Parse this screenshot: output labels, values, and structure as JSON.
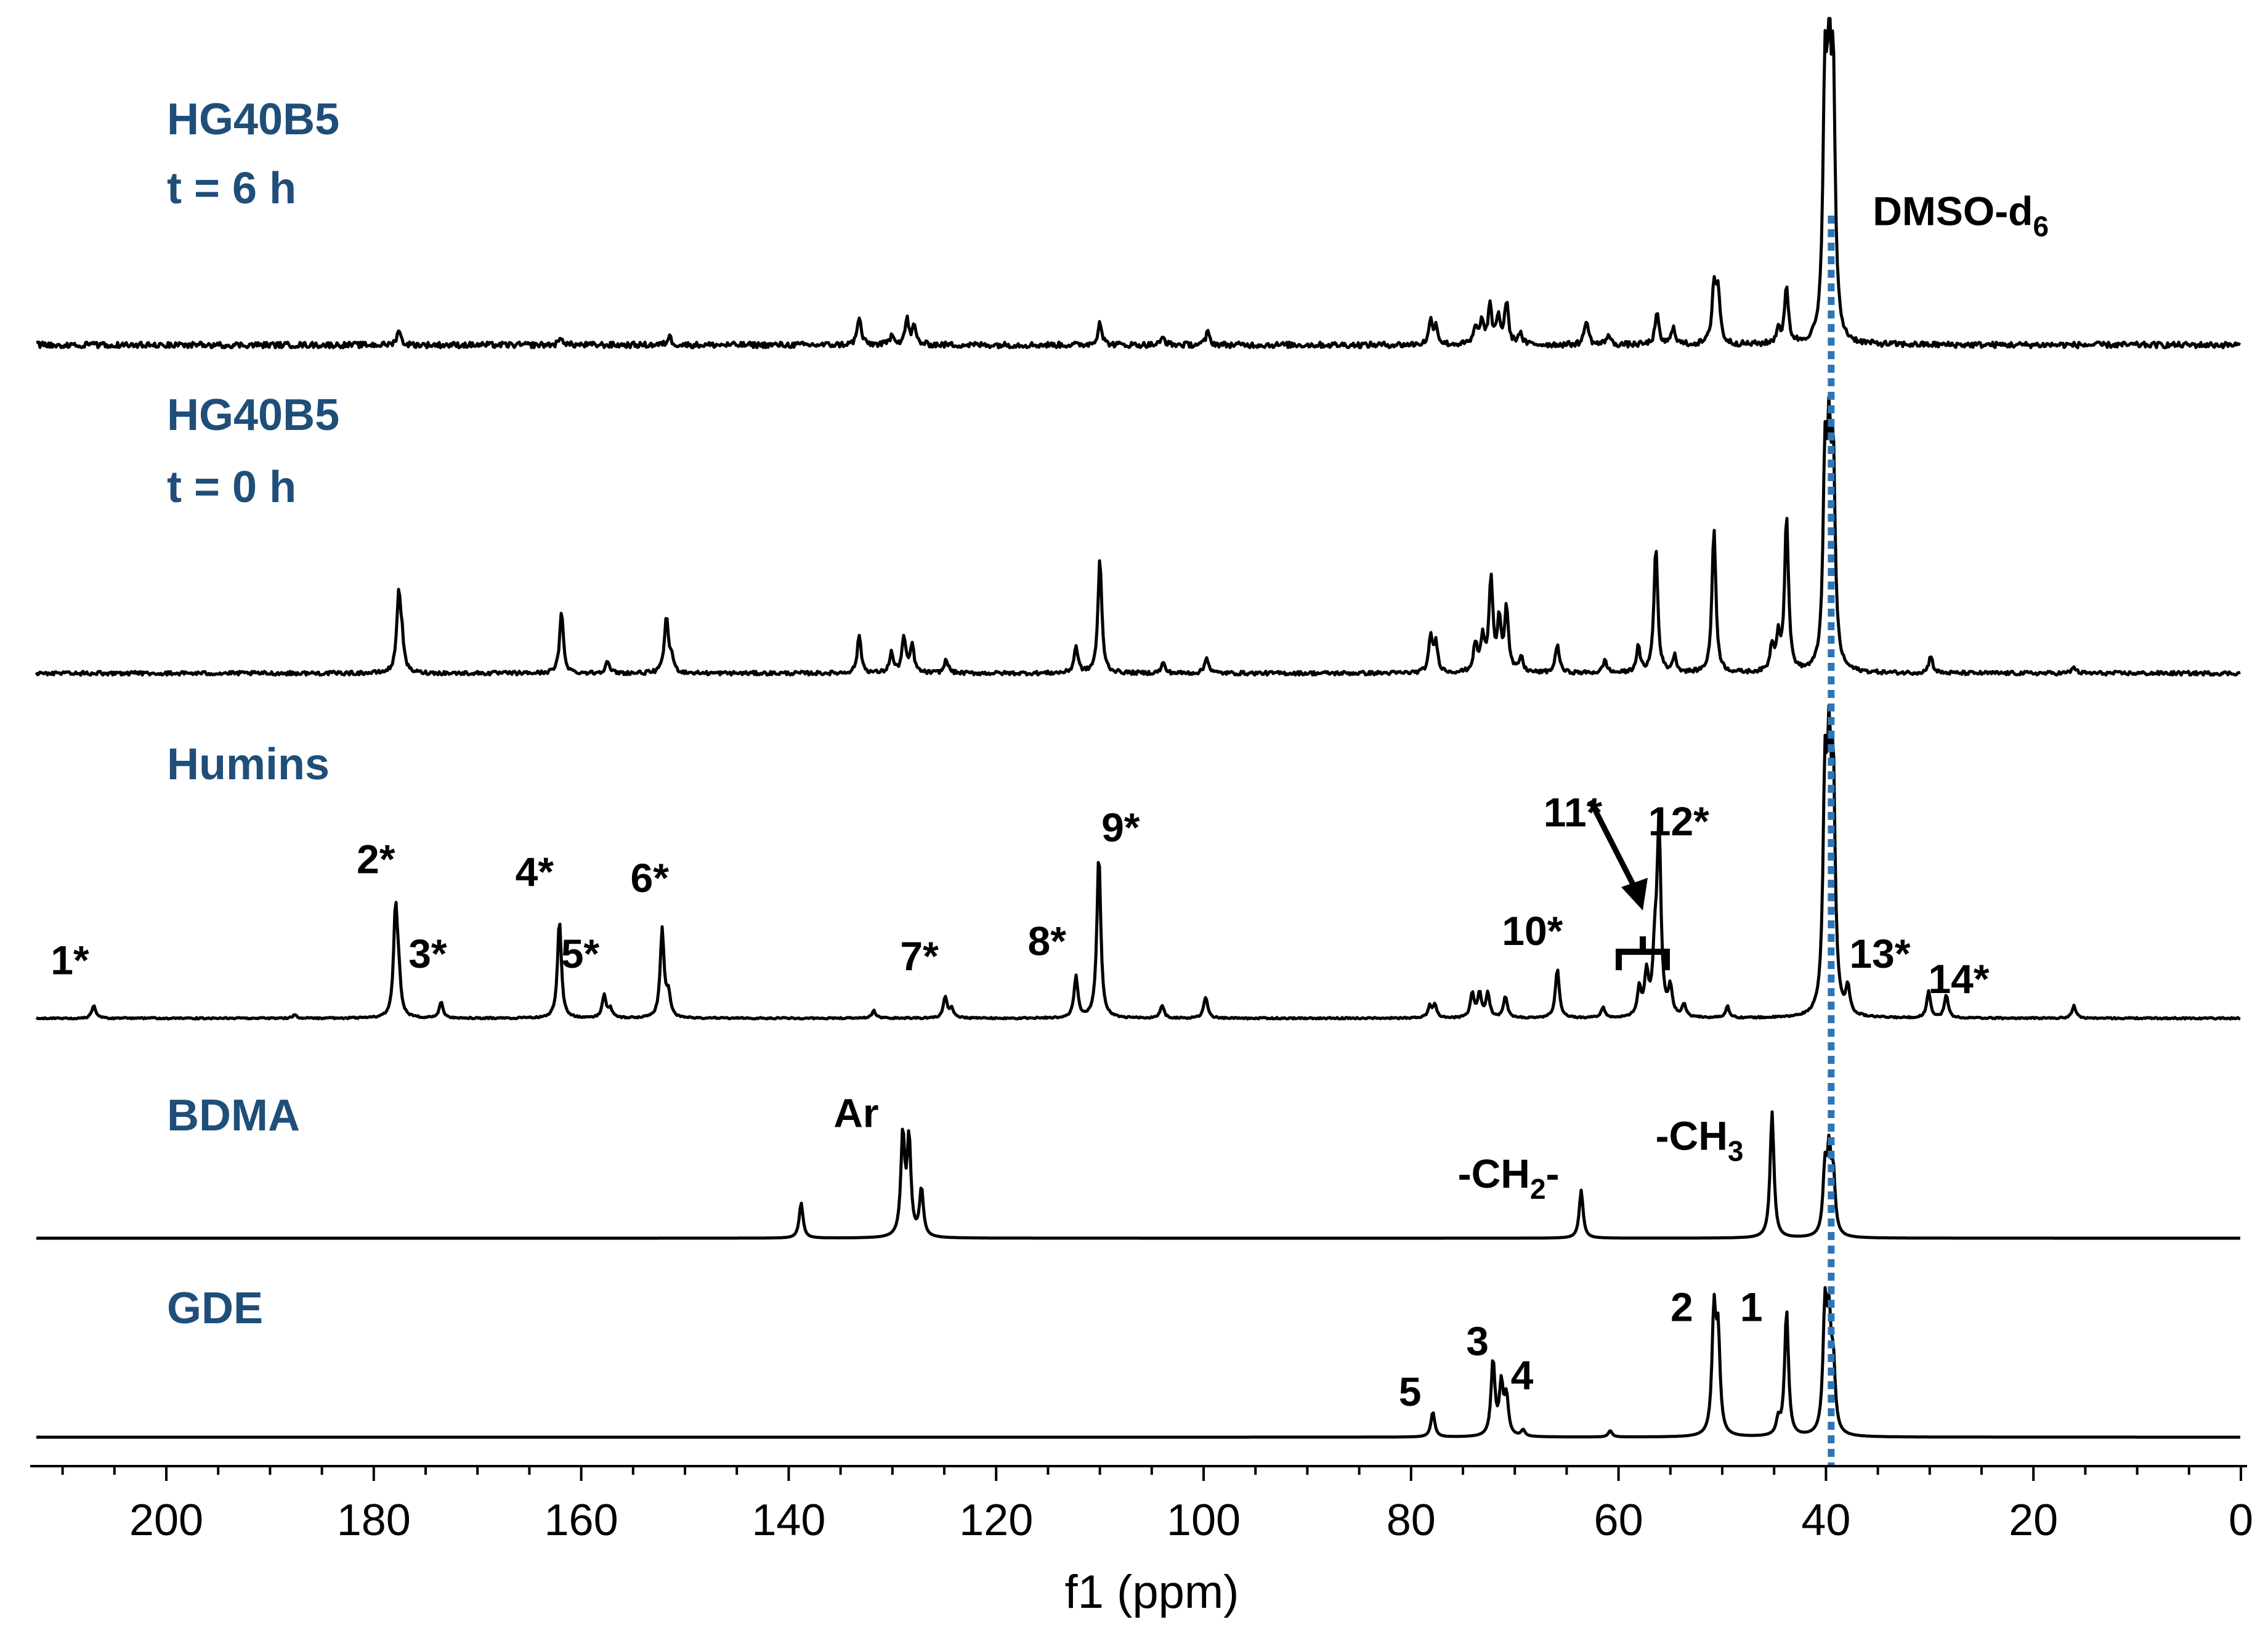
{
  "chart_data": {
    "type": "line",
    "title": "",
    "xlabel": "f1 (ppm)",
    "ylabel": "",
    "xlim": [
      214,
      0
    ],
    "x_ticks": [
      "200",
      "180",
      "160",
      "140",
      "120",
      "100",
      "80",
      "60",
      "40",
      "20",
      "0"
    ],
    "reference_line": {
      "label": "DMSO-d6",
      "ppm": 39.5,
      "color": "#2e75b6",
      "style": "dotted"
    },
    "series": [
      {
        "name": "HG40B5 t = 6 h",
        "label_line1": "HG40B5",
        "label_line2": "t = 6 h",
        "noise": 0.045,
        "peaks": [
          {
            "ppm": 177.6,
            "h": 0.12
          },
          {
            "ppm": 161.9,
            "h": 0.06
          },
          {
            "ppm": 151.5,
            "h": 0.07
          },
          {
            "ppm": 133.2,
            "h": 0.22
          },
          {
            "ppm": 130.0,
            "h": 0.09
          },
          {
            "ppm": 128.6,
            "h": 0.2
          },
          {
            "ppm": 127.9,
            "h": 0.14
          },
          {
            "ppm": 110.0,
            "h": 0.19
          },
          {
            "ppm": 103.9,
            "h": 0.06
          },
          {
            "ppm": 99.6,
            "h": 0.1
          },
          {
            "ppm": 78.1,
            "h": 0.18
          },
          {
            "ppm": 77.6,
            "h": 0.14
          },
          {
            "ppm": 73.8,
            "h": 0.12
          },
          {
            "ppm": 73.2,
            "h": 0.18
          },
          {
            "ppm": 72.4,
            "h": 0.29
          },
          {
            "ppm": 71.6,
            "h": 0.22
          },
          {
            "ppm": 70.8,
            "h": 0.33
          },
          {
            "ppm": 69.5,
            "h": 0.09
          },
          {
            "ppm": 63.1,
            "h": 0.2
          },
          {
            "ppm": 61.0,
            "h": 0.08
          },
          {
            "ppm": 56.3,
            "h": 0.24
          },
          {
            "ppm": 54.7,
            "h": 0.14
          },
          {
            "ppm": 50.8,
            "h": 0.45
          },
          {
            "ppm": 50.4,
            "h": 0.4
          },
          {
            "ppm": 44.6,
            "h": 0.12
          },
          {
            "ppm": 43.8,
            "h": 0.44
          },
          {
            "ppm": 40.1,
            "h": 1.9
          },
          {
            "ppm": 39.7,
            "h": 1.9
          },
          {
            "ppm": 39.3,
            "h": 1.9
          }
        ]
      },
      {
        "name": "HG40B5 t = 0 h",
        "label_line1": "HG40B5",
        "label_line2": "t = 0 h",
        "noise": 0.03,
        "peaks": [
          {
            "ppm": 177.6,
            "h": 0.6
          },
          {
            "ppm": 177.3,
            "h": 0.22
          },
          {
            "ppm": 161.9,
            "h": 0.48
          },
          {
            "ppm": 157.5,
            "h": 0.1
          },
          {
            "ppm": 151.8,
            "h": 0.44
          },
          {
            "ppm": 151.3,
            "h": 0.12
          },
          {
            "ppm": 133.2,
            "h": 0.3
          },
          {
            "ppm": 130.1,
            "h": 0.16
          },
          {
            "ppm": 128.9,
            "h": 0.28
          },
          {
            "ppm": 128.1,
            "h": 0.22
          },
          {
            "ppm": 124.8,
            "h": 0.11
          },
          {
            "ppm": 112.3,
            "h": 0.21
          },
          {
            "ppm": 110.0,
            "h": 0.9
          },
          {
            "ppm": 103.9,
            "h": 0.08
          },
          {
            "ppm": 99.7,
            "h": 0.13
          },
          {
            "ppm": 78.1,
            "h": 0.28
          },
          {
            "ppm": 77.6,
            "h": 0.22
          },
          {
            "ppm": 73.8,
            "h": 0.22
          },
          {
            "ppm": 73.1,
            "h": 0.26
          },
          {
            "ppm": 72.3,
            "h": 0.73
          },
          {
            "ppm": 71.5,
            "h": 0.4
          },
          {
            "ppm": 70.8,
            "h": 0.5
          },
          {
            "ppm": 69.4,
            "h": 0.12
          },
          {
            "ppm": 65.9,
            "h": 0.23
          },
          {
            "ppm": 61.3,
            "h": 0.1
          },
          {
            "ppm": 58.1,
            "h": 0.2
          },
          {
            "ppm": 56.4,
            "h": 1.0
          },
          {
            "ppm": 54.6,
            "h": 0.13
          },
          {
            "ppm": 50.8,
            "h": 1.15
          },
          {
            "ppm": 45.2,
            "h": 0.2
          },
          {
            "ppm": 44.6,
            "h": 0.26
          },
          {
            "ppm": 43.8,
            "h": 1.23
          },
          {
            "ppm": 40.1,
            "h": 1.5
          },
          {
            "ppm": 39.7,
            "h": 1.5
          },
          {
            "ppm": 39.3,
            "h": 1.5
          },
          {
            "ppm": 29.9,
            "h": 0.14
          },
          {
            "ppm": 16.1,
            "h": 0.05
          }
        ]
      },
      {
        "name": "Humins",
        "label_line1": "Humins",
        "label_line2": "",
        "noise": 0.012,
        "peaks": [
          {
            "ppm": 207.0,
            "h": 0.1
          },
          {
            "ppm": 177.9,
            "h": 0.85
          },
          {
            "ppm": 177.6,
            "h": 0.26
          },
          {
            "ppm": 173.5,
            "h": 0.13
          },
          {
            "ppm": 187.6,
            "h": 0.03
          },
          {
            "ppm": 162.1,
            "h": 0.78
          },
          {
            "ppm": 157.8,
            "h": 0.18
          },
          {
            "ppm": 157.2,
            "h": 0.07
          },
          {
            "ppm": 152.2,
            "h": 0.7
          },
          {
            "ppm": 151.6,
            "h": 0.18
          },
          {
            "ppm": 131.8,
            "h": 0.06
          },
          {
            "ppm": 124.9,
            "h": 0.17
          },
          {
            "ppm": 124.3,
            "h": 0.07
          },
          {
            "ppm": 112.3,
            "h": 0.33
          },
          {
            "ppm": 110.1,
            "h": 1.3
          },
          {
            "ppm": 104.0,
            "h": 0.1
          },
          {
            "ppm": 99.8,
            "h": 0.17
          },
          {
            "ppm": 78.2,
            "h": 0.09
          },
          {
            "ppm": 77.7,
            "h": 0.1
          },
          {
            "ppm": 74.1,
            "h": 0.19
          },
          {
            "ppm": 73.4,
            "h": 0.19
          },
          {
            "ppm": 72.6,
            "h": 0.19
          },
          {
            "ppm": 70.9,
            "h": 0.17
          },
          {
            "ppm": 65.9,
            "h": 0.39
          },
          {
            "ppm": 61.5,
            "h": 0.08
          },
          {
            "ppm": 58.0,
            "h": 0.22
          },
          {
            "ppm": 57.3,
            "h": 0.33
          },
          {
            "ppm": 56.5,
            "h": 0.45
          },
          {
            "ppm": 56.1,
            "h": 1.5
          },
          {
            "ppm": 55.0,
            "h": 0.22
          },
          {
            "ppm": 53.7,
            "h": 0.1
          },
          {
            "ppm": 49.5,
            "h": 0.09
          },
          {
            "ppm": 40.1,
            "h": 1.7
          },
          {
            "ppm": 39.7,
            "h": 1.7
          },
          {
            "ppm": 39.3,
            "h": 1.7
          },
          {
            "ppm": 37.9,
            "h": 0.21
          },
          {
            "ppm": 30.1,
            "h": 0.21
          },
          {
            "ppm": 28.4,
            "h": 0.18
          },
          {
            "ppm": 16.1,
            "h": 0.1
          }
        ]
      },
      {
        "name": "BDMA",
        "label_line1": "BDMA",
        "label_line2": "",
        "noise": 0.0,
        "peaks": [
          {
            "ppm": 138.8,
            "h": 0.28
          },
          {
            "ppm": 129.0,
            "h": 0.8
          },
          {
            "ppm": 128.4,
            "h": 0.76
          },
          {
            "ppm": 127.2,
            "h": 0.38
          },
          {
            "ppm": 63.6,
            "h": 0.38
          },
          {
            "ppm": 45.2,
            "h": 1.0
          },
          {
            "ppm": 40.1,
            "h": 0.5
          },
          {
            "ppm": 39.7,
            "h": 0.6
          },
          {
            "ppm": 39.3,
            "h": 0.45
          }
        ]
      },
      {
        "name": "GDE",
        "label_line1": "GDE",
        "label_line2": "",
        "noise": 0.0,
        "peaks": [
          {
            "ppm": 77.9,
            "h": 0.2
          },
          {
            "ppm": 72.1,
            "h": 0.6
          },
          {
            "ppm": 71.3,
            "h": 0.4
          },
          {
            "ppm": 70.8,
            "h": 0.3
          },
          {
            "ppm": 69.2,
            "h": 0.05
          },
          {
            "ppm": 60.8,
            "h": 0.05
          },
          {
            "ppm": 50.8,
            "h": 0.95
          },
          {
            "ppm": 50.4,
            "h": 0.75
          },
          {
            "ppm": 44.6,
            "h": 0.12
          },
          {
            "ppm": 43.8,
            "h": 1.0
          },
          {
            "ppm": 40.1,
            "h": 0.95
          },
          {
            "ppm": 39.7,
            "h": 0.8
          },
          {
            "ppm": 39.3,
            "h": 0.5
          }
        ]
      }
    ],
    "annotations": [
      {
        "trace": 0,
        "text": "DMSO-d",
        "sub": "6",
        "ppm": 35.5,
        "dy": -0.95
      },
      {
        "trace": 2,
        "text": "1*",
        "sub": "",
        "ppm": 209.3,
        "dy": -0.35
      },
      {
        "trace": 2,
        "text": "2*",
        "sub": "",
        "ppm": 179.8,
        "dy": -1.15
      },
      {
        "trace": 2,
        "text": "3*",
        "sub": "",
        "ppm": 174.8,
        "dy": -0.4
      },
      {
        "trace": 2,
        "text": "4*",
        "sub": "",
        "ppm": 164.5,
        "dy": -1.05
      },
      {
        "trace": 2,
        "text": "5*",
        "sub": "",
        "ppm": 160.1,
        "dy": -0.4
      },
      {
        "trace": 2,
        "text": "6*",
        "sub": "",
        "ppm": 153.4,
        "dy": -1.0
      },
      {
        "trace": 2,
        "text": "7*",
        "sub": "",
        "ppm": 127.4,
        "dy": -0.38
      },
      {
        "trace": 2,
        "text": "8*",
        "sub": "",
        "ppm": 115.1,
        "dy": -0.5
      },
      {
        "trace": 2,
        "text": "9*",
        "sub": "",
        "ppm": 108.0,
        "dy": -1.4
      },
      {
        "trace": 2,
        "text": "10*",
        "sub": "",
        "ppm": 68.3,
        "dy": -0.58
      },
      {
        "trace": 2,
        "text": "11*",
        "sub": "",
        "ppm": 64.4,
        "dy": -1.52
      },
      {
        "trace": 2,
        "text": "12*",
        "sub": "",
        "ppm": 54.2,
        "dy": -1.45
      },
      {
        "trace": 2,
        "text": "13*",
        "sub": "",
        "ppm": 34.8,
        "dy": -0.4
      },
      {
        "trace": 2,
        "text": "14*",
        "sub": "",
        "ppm": 27.2,
        "dy": -0.2
      },
      {
        "trace": 3,
        "text": "Ar",
        "sub": "",
        "ppm": 133.5,
        "dy": -0.88
      },
      {
        "trace": 3,
        "text": "-CH",
        "sub": "2",
        "ppm": 70.6,
        "dy": -0.4
      },
      {
        "trace": 3,
        "text": "-CH",
        "sub": "3",
        "ppm": 52.2,
        "dy": -0.7
      },
      {
        "trace": 4,
        "text": "5",
        "sub": "",
        "ppm": 80.1,
        "dy": -0.25
      },
      {
        "trace": 4,
        "text": "3",
        "sub": "",
        "ppm": 73.6,
        "dy": -0.65
      },
      {
        "trace": 4,
        "text": "4",
        "sub": "",
        "ppm": 69.3,
        "dy": -0.38
      },
      {
        "trace": 4,
        "text": "2",
        "sub": "",
        "ppm": 53.9,
        "dy": -0.92
      },
      {
        "trace": 4,
        "text": "1",
        "sub": "",
        "ppm": 47.2,
        "dy": -0.92
      }
    ]
  }
}
